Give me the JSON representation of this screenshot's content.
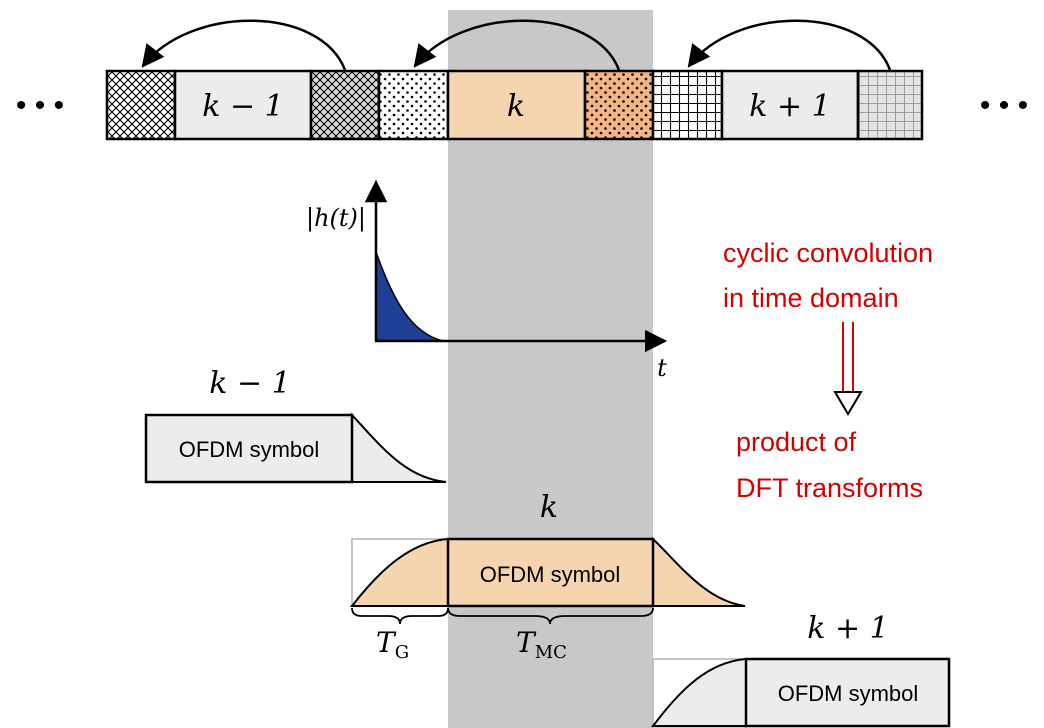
{
  "top_strip": {
    "ellipsis_left": "• • •",
    "ellipsis_right": "• • •",
    "label_prev": "k − 1",
    "label_curr": "k",
    "label_next": "k + 1"
  },
  "impulse_plot": {
    "y_label": "|h(t)|",
    "x_label": "t"
  },
  "symbols": {
    "prev_label": "k − 1",
    "curr_label": "k",
    "next_label": "k + 1",
    "box_text": "OFDM symbol"
  },
  "durations": {
    "guard": "T",
    "guard_sub": "G",
    "mc": "T",
    "mc_sub": "MC"
  },
  "annotation": {
    "line1": "cyclic convolution",
    "line2": "in time domain",
    "line3": "product of",
    "line4": "DFT transforms"
  },
  "colors": {
    "highlight_band": "#c8c8c8",
    "orange_fill": "#f5d5b0",
    "gray_fill": "#ececec",
    "impulse_fill": "#1f3f95",
    "annotation_red": "#d40000"
  }
}
